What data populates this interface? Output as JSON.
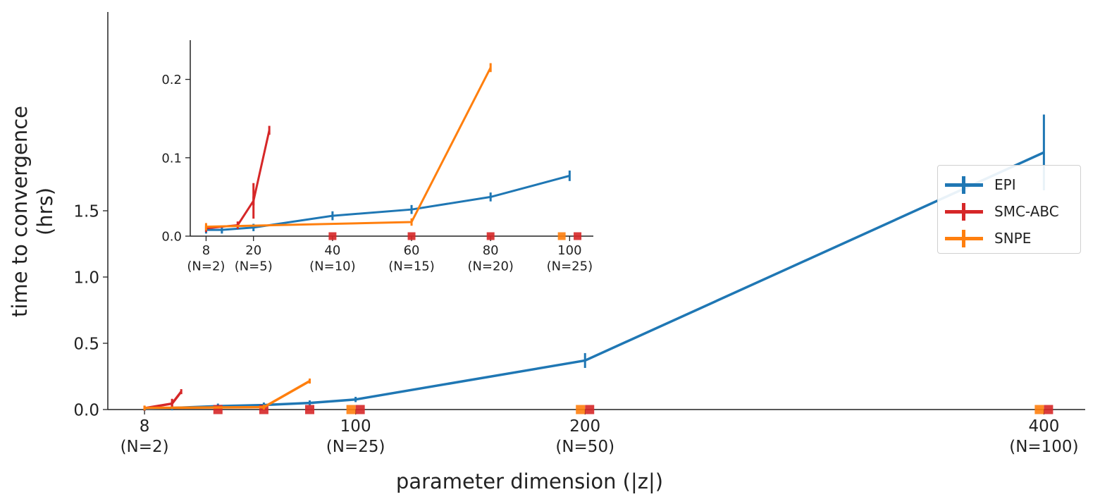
{
  "chart_data": [
    {
      "type": "line",
      "panel": "main",
      "title": "",
      "xlabel": "parameter dimension (|z|)",
      "ylabel": "time to convergence\n(hrs)",
      "xlim": [
        -8,
        418
      ],
      "ylim": [
        0,
        3.0
      ],
      "grid": false,
      "legend_position": "right",
      "x_ticks": [
        {
          "value": 8,
          "label": "8",
          "sub": "(N=2)"
        },
        {
          "value": 100,
          "label": "100",
          "sub": "(N=25)"
        },
        {
          "value": 200,
          "label": "200",
          "sub": "(N=50)"
        },
        {
          "value": 400,
          "label": "400",
          "sub": "(N=100)"
        }
      ],
      "y_ticks": [
        {
          "value": 0,
          "label": "0.0"
        },
        {
          "value": 0.5,
          "label": "0.5"
        },
        {
          "value": 1.0,
          "label": "1.0"
        },
        {
          "value": 1.5,
          "label": "1.5"
        }
      ],
      "series": [
        {
          "name": "EPI",
          "color": "#1f77b4",
          "x": [
            8,
            20,
            40,
            60,
            80,
            100,
            200,
            400
          ],
          "y": [
            0.008,
            0.012,
            0.026,
            0.034,
            0.05,
            0.076,
            0.37,
            1.94
          ],
          "err": [
            0.002,
            0.002,
            0.003,
            0.003,
            0.003,
            0.004,
            0.04,
            0.27
          ]
        },
        {
          "name": "SMC-ABC",
          "color": "#d62728",
          "x": [
            8,
            20,
            20,
            24
          ],
          "y": [
            0.01,
            0.045,
            0.045,
            0.135
          ],
          "err": [
            0.002,
            0.003,
            0.02,
            0.003
          ],
          "failed_x": [
            40,
            60,
            80,
            102,
            202,
            402
          ]
        },
        {
          "name": "SNPE",
          "color": "#ff7f0e",
          "x": [
            8,
            60,
            80
          ],
          "y": [
            0.012,
            0.018,
            0.215
          ],
          "err": [
            0.002,
            0.002,
            0.003
          ],
          "failed_x": [
            98,
            198,
            398
          ]
        }
      ]
    },
    {
      "type": "line",
      "panel": "inset",
      "title": "",
      "xlabel": "",
      "ylabel": "",
      "xlim": [
        4,
        106
      ],
      "ylim": [
        0,
        0.25
      ],
      "grid": false,
      "x_ticks": [
        {
          "value": 8,
          "label": "8",
          "sub": "(N=2)"
        },
        {
          "value": 20,
          "label": "20",
          "sub": "(N=5)"
        },
        {
          "value": 40,
          "label": "40",
          "sub": "(N=10)"
        },
        {
          "value": 60,
          "label": "60",
          "sub": "(N=15)"
        },
        {
          "value": 80,
          "label": "80",
          "sub": "(N=20)"
        },
        {
          "value": 100,
          "label": "100",
          "sub": "(N=25)"
        }
      ],
      "y_ticks": [
        {
          "value": 0,
          "label": "0.0"
        },
        {
          "value": 0.1,
          "label": "0.1"
        },
        {
          "value": 0.2,
          "label": "0.2"
        }
      ],
      "series": [
        {
          "name": "EPI",
          "color": "#1f77b4",
          "x": [
            8,
            12,
            20,
            40,
            60,
            80,
            100
          ],
          "y": [
            0.008,
            0.008,
            0.011,
            0.026,
            0.034,
            0.05,
            0.077
          ],
          "err": [
            0.002,
            0.002,
            0.002,
            0.003,
            0.003,
            0.003,
            0.004
          ]
        },
        {
          "name": "SMC-ABC",
          "color": "#d62728",
          "x": [
            8,
            16,
            20,
            20,
            24
          ],
          "y": [
            0.01,
            0.014,
            0.045,
            0.045,
            0.135
          ],
          "err": [
            0.002,
            0.002,
            0.003,
            0.02,
            0.003
          ],
          "failed_x": [
            40,
            60,
            80,
            102
          ]
        },
        {
          "name": "SNPE",
          "color": "#ff7f0e",
          "x": [
            8,
            60,
            80
          ],
          "y": [
            0.012,
            0.018,
            0.215
          ],
          "err": [
            0.002,
            0.002,
            0.003
          ],
          "failed_x": [
            98
          ]
        }
      ]
    }
  ],
  "legend": [
    {
      "name": "EPI",
      "color": "#1f77b4"
    },
    {
      "name": "SMC-ABC",
      "color": "#d62728"
    },
    {
      "name": "SNPE",
      "color": "#ff7f0e"
    }
  ]
}
